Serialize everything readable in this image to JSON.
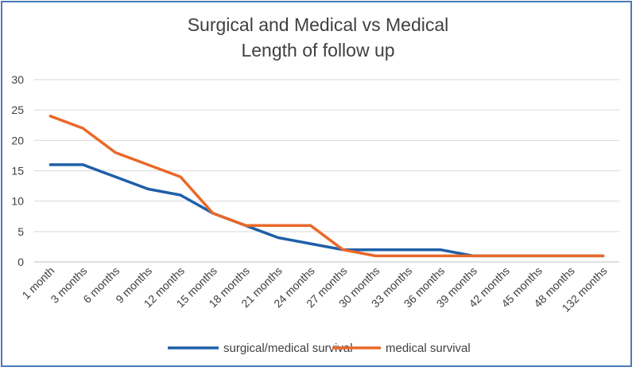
{
  "chart_data": {
    "type": "line",
    "title": [
      "Surgical and Medical vs Medical",
      "Length of follow up"
    ],
    "xlabel": "",
    "ylabel": "",
    "ylim": [
      0,
      30
    ],
    "yticks": [
      0,
      5,
      10,
      15,
      20,
      25,
      30
    ],
    "grid": true,
    "legend_position": "bottom",
    "categories": [
      "1 month",
      "3 months",
      "6 months",
      "9 months",
      "12 months",
      "15 months",
      "18 months",
      "21 months",
      "24 months",
      "27 months",
      "30 months",
      "33 months",
      "36 months",
      "39 months",
      "42 months",
      "45 months",
      "48 months",
      "132 months"
    ],
    "series": [
      {
        "name": "surgical/medical survival",
        "color": "#1f5fa8",
        "values": [
          16,
          16,
          14,
          12,
          11,
          8,
          6,
          4,
          3,
          2,
          2,
          2,
          2,
          1,
          1,
          1,
          1,
          1
        ]
      },
      {
        "name": "medical survival",
        "color": "#e8692a",
        "values": [
          24,
          22,
          18,
          16,
          14,
          8,
          6,
          6,
          6,
          2,
          1,
          1,
          1,
          1,
          1,
          1,
          1,
          1
        ]
      }
    ]
  }
}
